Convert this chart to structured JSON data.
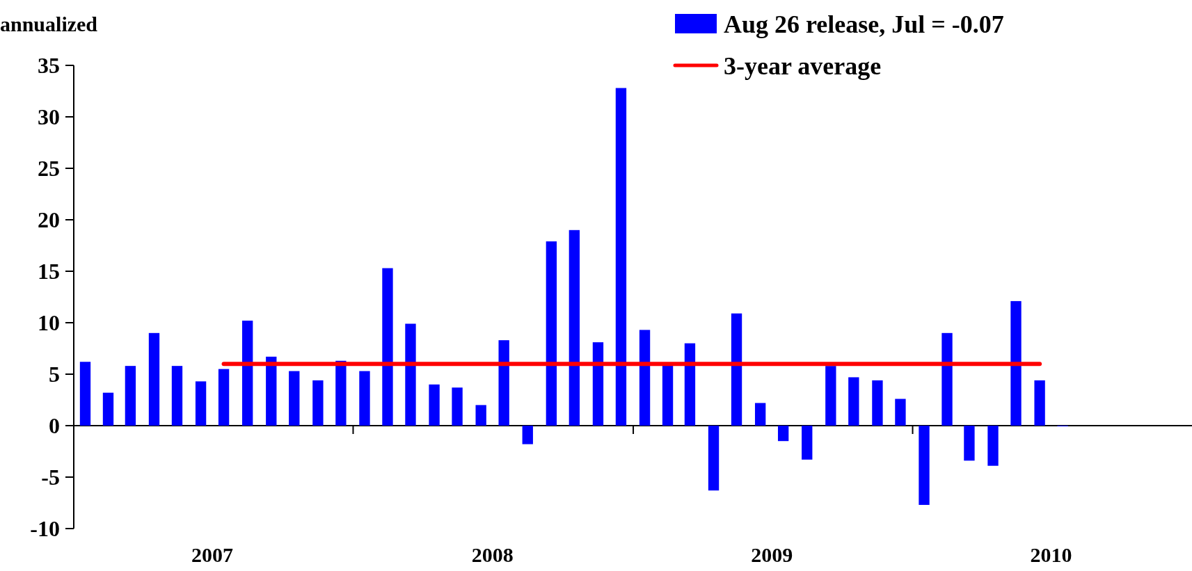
{
  "chart_data": {
    "type": "bar",
    "ylabel": "annualized",
    "x": [
      "2007-01-16",
      "2007-02-15",
      "2007-03-16",
      "2007-04-16",
      "2007-05-16",
      "2007-06-16",
      "2007-07-16",
      "2007-08-16",
      "2007-09-16",
      "2007-10-16",
      "2007-11-16",
      "2007-12-16",
      "2008-01-16",
      "2008-02-15",
      "2008-03-16",
      "2008-04-16",
      "2008-05-16",
      "2008-06-16",
      "2008-07-16",
      "2008-08-16",
      "2008-09-16",
      "2008-10-16",
      "2008-11-16",
      "2008-12-16",
      "2009-01-16",
      "2009-02-15",
      "2009-03-16",
      "2009-04-16",
      "2009-05-16",
      "2009-06-16",
      "2009-07-16",
      "2009-08-16",
      "2009-09-16",
      "2009-10-16",
      "2009-11-16",
      "2009-12-16",
      "2010-01-16",
      "2010-02-15",
      "2010-03-16",
      "2010-04-16",
      "2010-05-16",
      "2010-06-16",
      "2010-07-16"
    ],
    "series": [
      {
        "name": "Aug 26 release, Jul = -0.07",
        "color": "#0000ff",
        "values": [
          6.2,
          3.2,
          5.8,
          9.0,
          5.8,
          4.3,
          5.5,
          10.2,
          6.7,
          5.3,
          4.4,
          6.3,
          5.3,
          15.3,
          9.9,
          4.0,
          3.7,
          2.0,
          8.3,
          -1.8,
          17.9,
          19.0,
          8.1,
          32.8,
          9.3,
          5.9,
          8.0,
          -6.3,
          10.9,
          2.2,
          -1.5,
          -3.3,
          5.8,
          4.7,
          4.4,
          2.6,
          -7.7,
          9.0,
          -3.4,
          -3.9,
          12.1,
          4.4,
          -0.07
        ]
      },
      {
        "name": "3-year average",
        "type": "line",
        "color": "#ff0000",
        "x": [
          "2007-07-16",
          "2010-06-16"
        ],
        "values": [
          6.0,
          6.0
        ]
      }
    ],
    "xlim": [
      "2007-01-01",
      "2011-01-01"
    ],
    "xticks": [
      {
        "value": "2007-07-01",
        "label": "2007"
      },
      {
        "value": "2008-07-01",
        "label": "2008"
      },
      {
        "value": "2009-07-01",
        "label": "2009"
      },
      {
        "value": "2010-07-01",
        "label": "2010"
      },
      {
        "value": "2008-01-01",
        "label": null
      },
      {
        "value": "2009-01-01",
        "label": null
      },
      {
        "value": "2010-01-01",
        "label": null
      }
    ],
    "ylim": [
      -10,
      35
    ],
    "yticks": [
      -10,
      -5,
      0,
      5,
      10,
      15,
      20,
      25,
      30,
      35
    ],
    "legend": "top right"
  }
}
